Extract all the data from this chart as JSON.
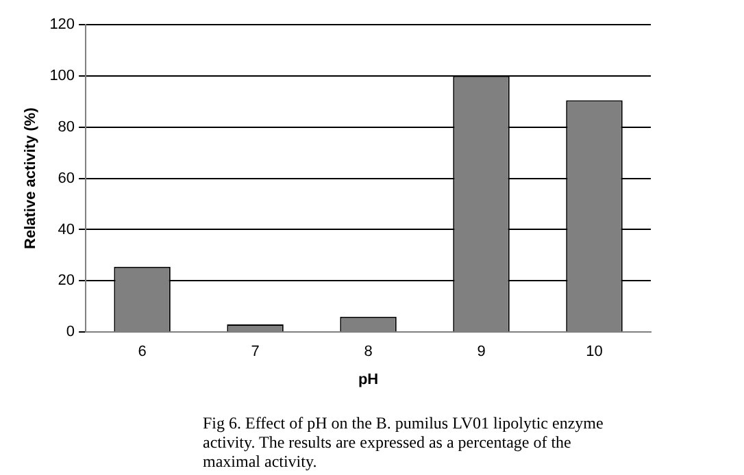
{
  "chart_data": {
    "type": "bar",
    "xlabel": "pH",
    "ylabel": "Relative activity (%)",
    "categories": [
      "6",
      "7",
      "8",
      "9",
      "10"
    ],
    "values": [
      25.5,
      3,
      6,
      100,
      90.5
    ],
    "color": "#808080",
    "ylim": [
      0,
      120
    ],
    "yticks": [
      0,
      20,
      40,
      60,
      80,
      100,
      120
    ],
    "grid": "y",
    "legend": false,
    "annotations": [
      "Fig 6. Effect of pH on the B. pumilus LV01 lipolytic enzyme activity. The results are expressed as a percentage of the maximal activity."
    ]
  }
}
